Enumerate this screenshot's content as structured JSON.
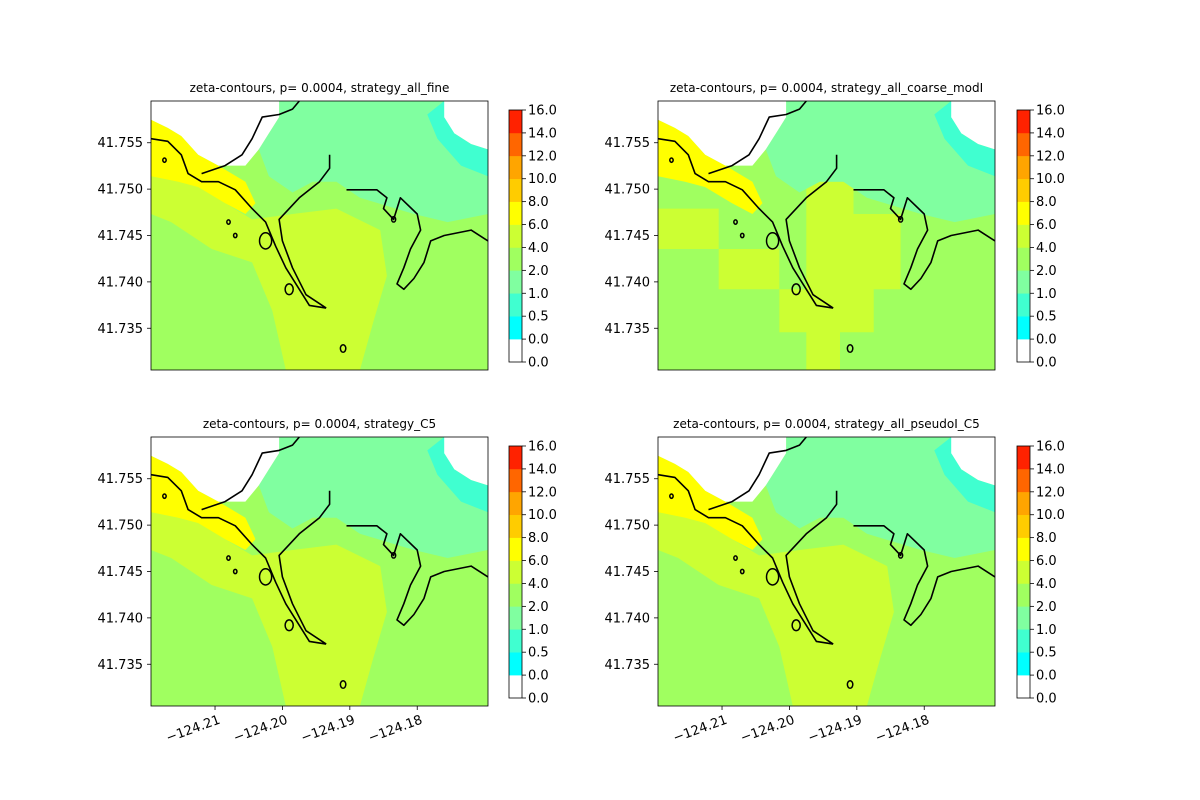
{
  "figure": {
    "background": "#ffffff"
  },
  "colormap": {
    "levels": [
      0.0,
      0.0,
      0.5,
      1.0,
      2.0,
      4.0,
      6.0,
      8.0,
      10.0,
      12.0,
      14.0,
      16.0
    ],
    "tick_labels": [
      "0.0",
      "0.0",
      "0.5",
      "1.0",
      "2.0",
      "4.0",
      "6.0",
      "8.0",
      "10.0",
      "12.0",
      "14.0",
      "16.0"
    ],
    "colors": [
      "#ffffff",
      "#00ffff",
      "#40ffd0",
      "#80ffa0",
      "#a0ff60",
      "#ccff33",
      "#ffff00",
      "#ffcc00",
      "#ffa500",
      "#ff6600",
      "#ff2200"
    ]
  },
  "chart_data": [
    {
      "type": "heatmap",
      "title": "zeta-contours, p= 0.0004, strategy_all_fine",
      "xlabel": "",
      "ylabel": "",
      "xlim": [
        -124.2195,
        -124.1695
      ],
      "ylim": [
        41.7305,
        41.7595
      ],
      "yticks": [
        41.755,
        41.75,
        41.745,
        41.74,
        41.735
      ],
      "ytick_labels": [
        "41.755",
        "41.750",
        "41.745",
        "41.740",
        "41.735"
      ],
      "xticks": [],
      "xtick_labels": [],
      "background_level": "4.0",
      "regions": [
        {
          "level": "6.0",
          "description": "southwest tidal flats and harbor basin"
        },
        {
          "level": "8.0",
          "description": "northwest shoreline band"
        },
        {
          "level": "2.0",
          "description": "northern bay"
        },
        {
          "level": "1.0",
          "description": "northeast channel edges"
        },
        {
          "level": "0.0",
          "description": "dry land / no data"
        }
      ],
      "colorbar_ticks": [
        "0.0",
        "0.0",
        "0.5",
        "1.0",
        "2.0",
        "4.0",
        "6.0",
        "8.0",
        "10.0",
        "12.0",
        "14.0",
        "16.0"
      ]
    },
    {
      "type": "heatmap",
      "title": "zeta-contours, p= 0.0004, strategy_all_coarse_modI",
      "xlabel": "",
      "ylabel": "",
      "xlim": [
        -124.2195,
        -124.1695
      ],
      "ylim": [
        41.7305,
        41.7595
      ],
      "yticks": [
        41.755,
        41.75,
        41.745,
        41.74,
        41.735
      ],
      "ytick_labels": [
        "41.755",
        "41.750",
        "41.745",
        "41.740",
        "41.735"
      ],
      "xticks": [],
      "xtick_labels": [],
      "background_level": "4.0",
      "regions": [
        {
          "level": "6.0",
          "description": "blocky coarse patches west and south"
        },
        {
          "level": "8.0",
          "description": "northwest shoreline band"
        },
        {
          "level": "2.0",
          "description": "northern bay"
        },
        {
          "level": "1.0",
          "description": "northeast channel edges"
        },
        {
          "level": "0.0",
          "description": "dry land / no data"
        }
      ],
      "colorbar_ticks": [
        "0.0",
        "0.0",
        "0.5",
        "1.0",
        "2.0",
        "4.0",
        "6.0",
        "8.0",
        "10.0",
        "12.0",
        "14.0",
        "16.0"
      ]
    },
    {
      "type": "heatmap",
      "title": "zeta-contours, p= 0.0004, strategy_C5",
      "xlabel": "",
      "ylabel": "",
      "xlim": [
        -124.2195,
        -124.1695
      ],
      "ylim": [
        41.7305,
        41.7595
      ],
      "yticks": [
        41.755,
        41.75,
        41.745,
        41.74,
        41.735
      ],
      "ytick_labels": [
        "41.755",
        "41.750",
        "41.745",
        "41.740",
        "41.735"
      ],
      "xticks": [
        -124.21,
        -124.2,
        -124.19,
        -124.18
      ],
      "xtick_labels": [
        "−124.21",
        "−124.20",
        "−124.19",
        "−124.18"
      ],
      "background_level": "4.0",
      "regions": [
        {
          "level": "6.0",
          "description": "central harbor and southern wedge"
        },
        {
          "level": "8.0",
          "description": "northwest shoreline band"
        },
        {
          "level": "2.0",
          "description": "northern bay"
        },
        {
          "level": "1.0",
          "description": "northeast channel edges"
        },
        {
          "level": "0.0",
          "description": "dry land / no data"
        }
      ],
      "colorbar_ticks": [
        "0.0",
        "0.0",
        "0.5",
        "1.0",
        "2.0",
        "4.0",
        "6.0",
        "8.0",
        "10.0",
        "12.0",
        "14.0",
        "16.0"
      ]
    },
    {
      "type": "heatmap",
      "title": "zeta-contours, p= 0.0004, strategy_all_pseudoI_C5",
      "xlabel": "",
      "ylabel": "",
      "xlim": [
        -124.2195,
        -124.1695
      ],
      "ylim": [
        41.7305,
        41.7595
      ],
      "yticks": [
        41.755,
        41.75,
        41.745,
        41.74,
        41.735
      ],
      "ytick_labels": [
        "41.755",
        "41.750",
        "41.745",
        "41.740",
        "41.735"
      ],
      "xticks": [
        -124.21,
        -124.2,
        -124.19,
        -124.18
      ],
      "xtick_labels": [
        "−124.21",
        "−124.20",
        "−124.19",
        "−124.18"
      ],
      "background_level": "4.0",
      "regions": [
        {
          "level": "6.0",
          "description": "central harbor and southern wedge"
        },
        {
          "level": "8.0",
          "description": "northwest shoreline band"
        },
        {
          "level": "2.0",
          "description": "northern bay"
        },
        {
          "level": "1.0",
          "description": "northeast channel edges"
        },
        {
          "level": "0.0",
          "description": "dry land / no data"
        }
      ],
      "colorbar_ticks": [
        "0.0",
        "0.0",
        "0.5",
        "1.0",
        "2.0",
        "4.0",
        "6.0",
        "8.0",
        "10.0",
        "12.0",
        "14.0",
        "16.0"
      ]
    }
  ]
}
